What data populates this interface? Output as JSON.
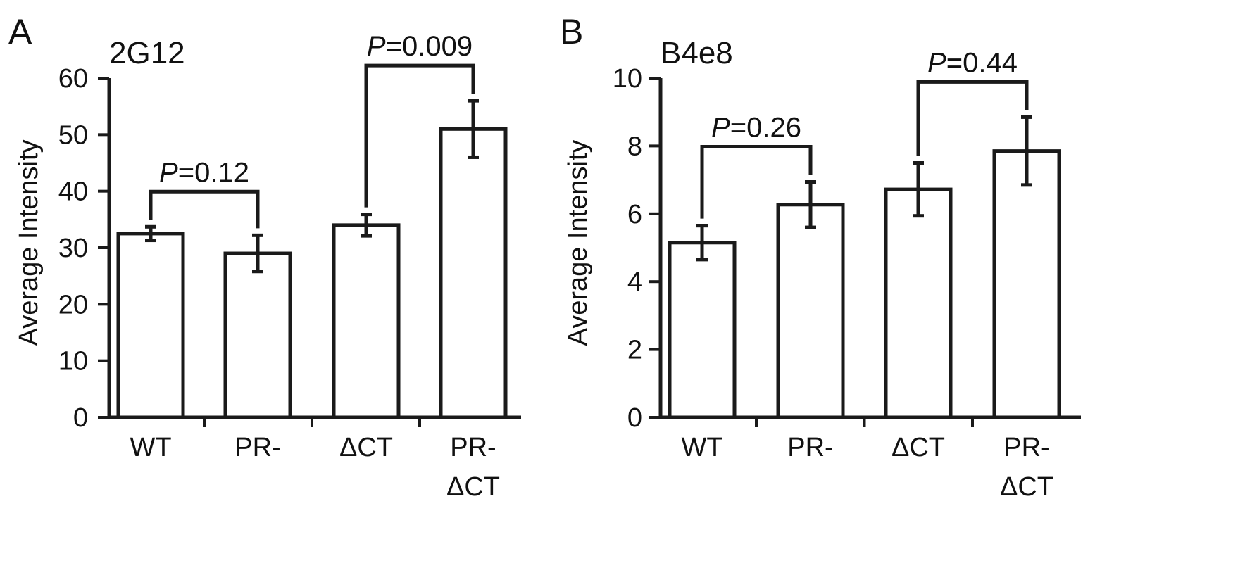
{
  "chart_data": [
    {
      "type": "bar",
      "panel_letter": "A",
      "title": "2G12",
      "ylabel": "Average Intensity",
      "xlabel": "",
      "ylim": [
        0,
        60
      ],
      "yticks": [
        0,
        10,
        20,
        30,
        40,
        50,
        60
      ],
      "categories": [
        [
          "WT"
        ],
        [
          "PR-"
        ],
        [
          "ΔCT"
        ],
        [
          "PR-",
          "ΔCT"
        ]
      ],
      "values": [
        32.5,
        29.0,
        34.0,
        51.0
      ],
      "error": [
        1.2,
        3.2,
        1.9,
        5.0
      ],
      "grid": false,
      "significance": [
        {
          "from": 0,
          "to": 1,
          "prefix": "P",
          "value": "=0.12"
        },
        {
          "from": 2,
          "to": 3,
          "prefix": "P",
          "value": "=0.009"
        }
      ]
    },
    {
      "type": "bar",
      "panel_letter": "B",
      "title": "B4e8",
      "ylabel": "Average Intensity",
      "xlabel": "",
      "ylim": [
        0,
        10
      ],
      "yticks": [
        0,
        2,
        4,
        6,
        8,
        10
      ],
      "categories": [
        [
          "WT"
        ],
        [
          "PR-"
        ],
        [
          "ΔCT"
        ],
        [
          "PR-",
          "ΔCT"
        ]
      ],
      "values": [
        5.15,
        6.27,
        6.72,
        7.85
      ],
      "error": [
        0.5,
        0.67,
        0.78,
        1.0
      ],
      "grid": false,
      "significance": [
        {
          "from": 0,
          "to": 1,
          "prefix": "P",
          "value": "=0.26"
        },
        {
          "from": 2,
          "to": 3,
          "prefix": "P",
          "value": "=0.44"
        }
      ]
    }
  ]
}
